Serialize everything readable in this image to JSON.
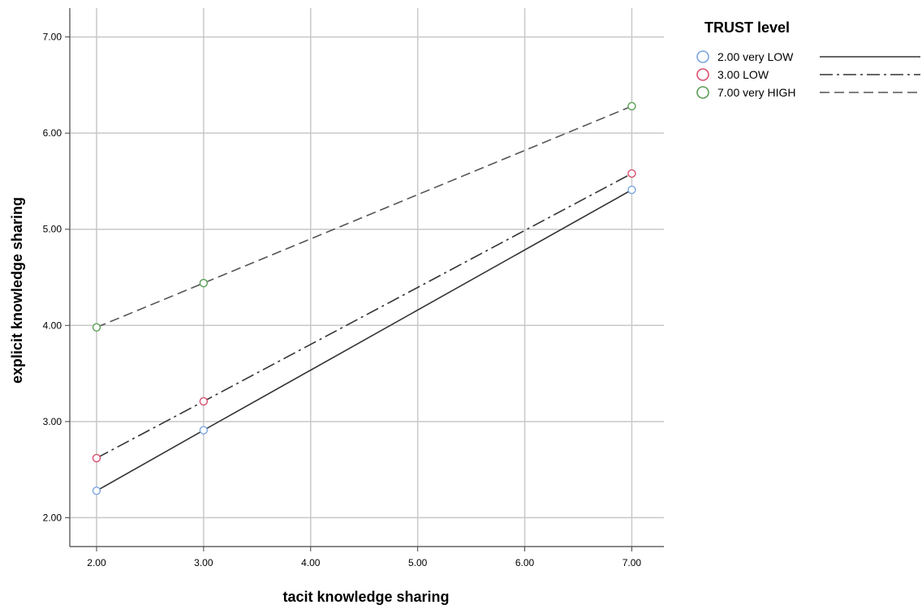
{
  "chart_data": {
    "type": "line",
    "title": "",
    "xlabel": "tacit knowledge sharing",
    "ylabel": "explicit knowledge sharing",
    "x": [
      2,
      3,
      7
    ],
    "x_ticks": [
      "2.00",
      "3.00",
      "4.00",
      "5.00",
      "6.00",
      "7.00"
    ],
    "y_ticks": [
      "2.00",
      "3.00",
      "4.00",
      "5.00",
      "6.00",
      "7.00"
    ],
    "xlim": [
      1.75,
      7.3
    ],
    "ylim": [
      1.7,
      7.3
    ],
    "grid": true,
    "markers": "open-circle",
    "legend": {
      "title": "TRUST level",
      "placement": "right"
    },
    "series": [
      {
        "name": "2.00 very LOW",
        "color": "#7aa5e0",
        "line_color": "#333333",
        "dash": "solid",
        "values": [
          2.28,
          2.91,
          5.41
        ]
      },
      {
        "name": "3.00 LOW",
        "color": "#d8506e",
        "line_color": "#333333",
        "dash": "dashdot",
        "values": [
          2.62,
          3.21,
          5.58
        ]
      },
      {
        "name": "7.00 very HIGH",
        "color": "#5a9e55",
        "line_color": "#555555",
        "dash": "dashed",
        "values": [
          3.98,
          4.44,
          6.28
        ]
      }
    ]
  }
}
